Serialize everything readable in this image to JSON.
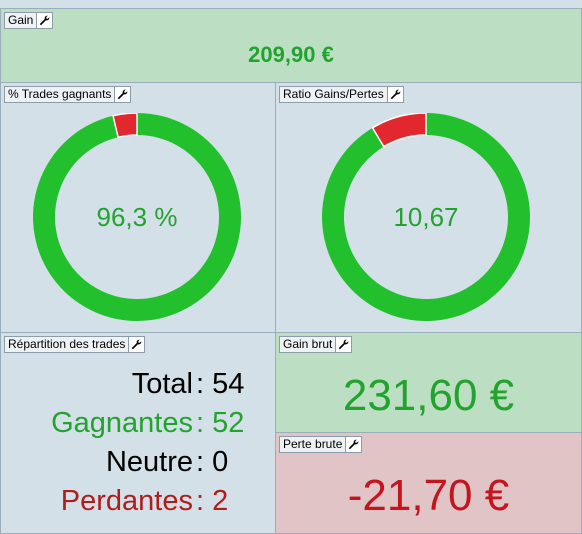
{
  "gain": {
    "title": "Gain",
    "value": "209,90 €"
  },
  "win_rate": {
    "title": "% Trades gagnants",
    "label": "96,3 %",
    "fraction": 0.963,
    "color_main": "#22c02d",
    "color_rest": "#e2272e"
  },
  "ratio": {
    "title": "Ratio Gains/Pertes",
    "label": "10,67",
    "fraction": 0.914,
    "color_main": "#22c02d",
    "color_rest": "#e2272e"
  },
  "repartition": {
    "title": "Répartition des trades",
    "rows": [
      {
        "label": "Total",
        "value": "54",
        "color": "#000000"
      },
      {
        "label": "Gagnantes",
        "value": "52",
        "color": "#22a32d"
      },
      {
        "label": "Neutre",
        "value": "0",
        "color": "#000000"
      },
      {
        "label": "Perdantes",
        "value": "2",
        "color": "#b01c1c"
      }
    ]
  },
  "gain_brut": {
    "title": "Gain brut",
    "value": "231,60 €"
  },
  "perte_brute": {
    "title": "Perte brute",
    "value": "-21,70 €"
  },
  "icons": {
    "settings": "wrench-icon"
  }
}
